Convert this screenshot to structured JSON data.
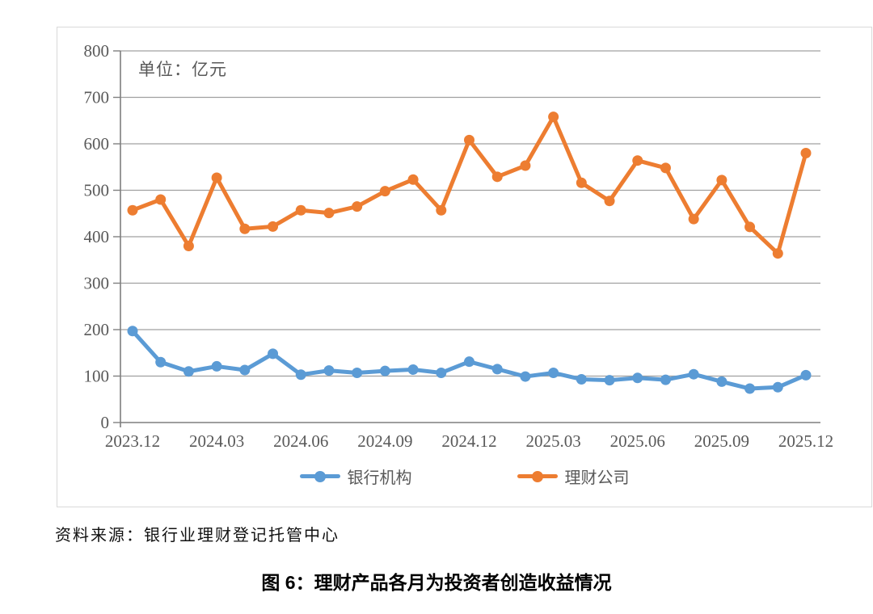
{
  "unit_label": "单位：亿元",
  "source_note": "资料来源：银行业理财登记托管中心",
  "figure_title": "图 6：理财产品各月为投资者创造收益情况",
  "colors": {
    "bank_series": "#5B9BD5",
    "wealth_series": "#ED7D31",
    "gridline": "#a0a0a0",
    "axis_line": "#7f7f7f",
    "axis_text": "#595959",
    "box_border": "#d9d9d9"
  },
  "chart_data": {
    "type": "line",
    "title": "",
    "unit": "亿元",
    "x": [
      "2023.12",
      "2024.01",
      "2024.02",
      "2024.03",
      "2024.04",
      "2024.05",
      "2024.06",
      "2024.07",
      "2024.08",
      "2024.09",
      "2024.10",
      "2024.11",
      "2024.12",
      "2025.01",
      "2025.02",
      "2025.03",
      "2025.04",
      "2025.05",
      "2025.06",
      "2025.07",
      "2025.08",
      "2025.09",
      "2025.10",
      "2025.11",
      "2025.12"
    ],
    "series": [
      {
        "name": "银行机构",
        "color": "#5B9BD5",
        "values": [
          197,
          130,
          110,
          121,
          113,
          148,
          103,
          112,
          107,
          111,
          114,
          107,
          131,
          115,
          99,
          107,
          93,
          91,
          96,
          92,
          104,
          88,
          73,
          76,
          102
        ]
      },
      {
        "name": "理财公司",
        "color": "#ED7D31",
        "values": [
          457,
          480,
          380,
          527,
          417,
          422,
          457,
          451,
          465,
          498,
          523,
          457,
          608,
          529,
          553,
          658,
          516,
          477,
          564,
          548,
          438,
          522,
          421,
          364,
          580
        ]
      }
    ],
    "ylim": [
      0,
      800
    ],
    "ytick_step": 100,
    "ytick_labels": [
      "0",
      "100",
      "200",
      "300",
      "400",
      "500",
      "600",
      "700",
      "800"
    ],
    "xtick_labels": [
      "2023.12",
      "2024.03",
      "2024.06",
      "2024.09",
      "2024.12",
      "2025.03",
      "2025.06",
      "2025.09",
      "2025.12"
    ],
    "xtick_every": 3,
    "grid": true,
    "legend_position": "bottom"
  }
}
